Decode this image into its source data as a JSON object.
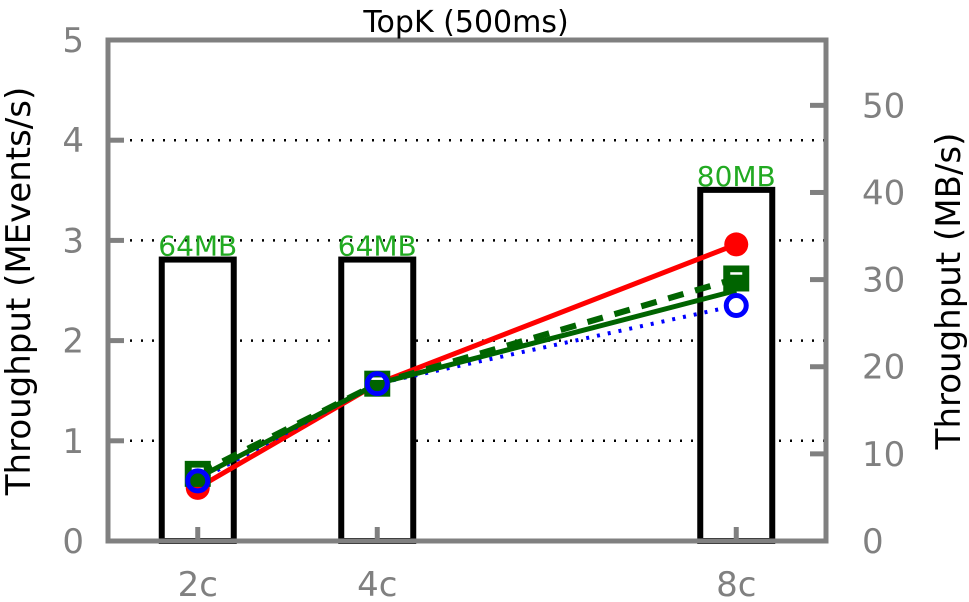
{
  "chart_data": {
    "type": "bar+line",
    "title": "TopK (500ms)",
    "categories": [
      "2c",
      "4c",
      "8c"
    ],
    "x": [
      2,
      4,
      8
    ],
    "ylabel_left": "Throughput (MEvents/s)",
    "ylabel_right": "Throughput (MB/s)",
    "ylim_left": [
      0,
      5
    ],
    "yticks_left": [
      "0",
      "1",
      "2",
      "3",
      "4",
      "5"
    ],
    "ylim_right": [
      0,
      57.5
    ],
    "yticks_right": [
      "0",
      "10",
      "20",
      "30",
      "40",
      "50"
    ],
    "grid": "horizontal-dotted",
    "bars": {
      "axis": "right",
      "values": [
        32.3,
        32.3,
        40.3
      ],
      "labels": [
        "64MB",
        "64MB",
        "80MB"
      ]
    },
    "series": [
      {
        "values": [
          0.53,
          1.57,
          2.96
        ],
        "color": "#ff0000",
        "style": "solid",
        "marker": "filled-circle"
      },
      {
        "values": [
          0.67,
          1.57,
          2.62
        ],
        "color": "#006400",
        "style": "dashed",
        "marker": "filled-square"
      },
      {
        "values": [
          0.6,
          1.57,
          2.35
        ],
        "color": "#0000ff",
        "style": "dotted",
        "marker": "open-circle"
      },
      {
        "values": [
          0.63,
          1.57,
          2.5
        ],
        "color": "#006400",
        "style": "solid",
        "marker": "none"
      }
    ],
    "colors": {
      "axis": "#808080",
      "grid": "#000000",
      "bar_label": "#22aa22"
    }
  }
}
